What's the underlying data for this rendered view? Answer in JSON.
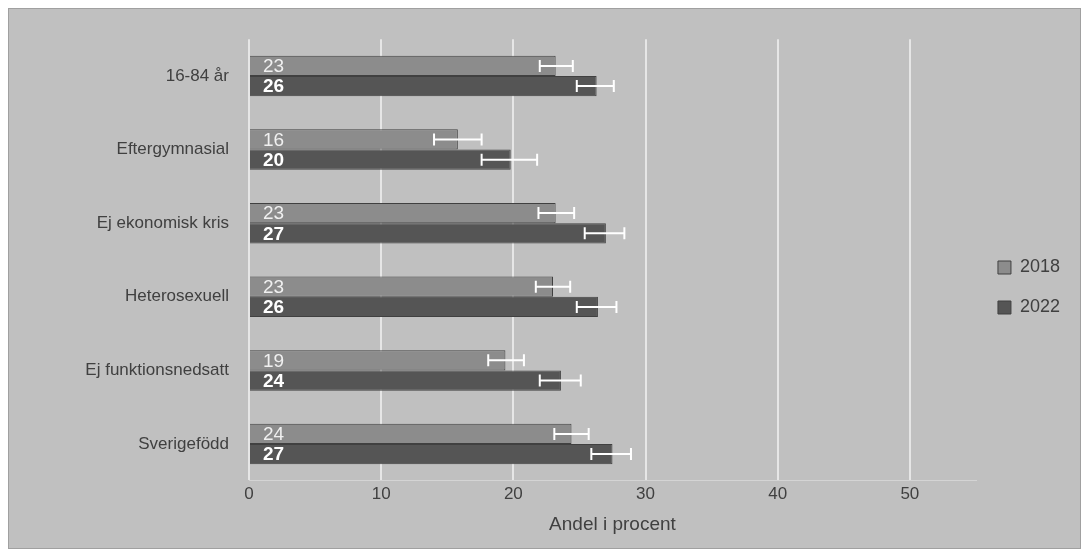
{
  "chart_data": {
    "type": "bar",
    "orientation": "horizontal",
    "xlabel": "Andel i procent",
    "categories": [
      "16-84 år",
      "Eftergymnasial",
      "Ej ekonomisk kris",
      "Heterosexuell",
      "Ej funktionsnedsatt",
      "Sverigefödd"
    ],
    "series": [
      {
        "name": "2018",
        "color": "#8c8c8c",
        "values": [
          23.2,
          15.8,
          23.2,
          23.0,
          19.4,
          24.4
        ],
        "errors": [
          [
            22.0,
            24.5
          ],
          [
            14.0,
            17.6
          ],
          [
            21.9,
            24.6
          ],
          [
            21.7,
            24.3
          ],
          [
            18.1,
            20.8
          ],
          [
            23.1,
            25.7
          ]
        ],
        "value_labels": [
          "23",
          "16",
          "23",
          "23",
          "19",
          "24"
        ]
      },
      {
        "name": "2022",
        "color": "#555555",
        "values": [
          26.3,
          19.8,
          27.0,
          26.4,
          23.6,
          27.5
        ],
        "errors": [
          [
            24.8,
            27.6
          ],
          [
            17.6,
            21.8
          ],
          [
            25.4,
            28.4
          ],
          [
            24.8,
            27.8
          ],
          [
            22.0,
            25.1
          ],
          [
            25.9,
            28.9
          ]
        ],
        "value_labels": [
          "26",
          "20",
          "27",
          "26",
          "24",
          "27"
        ]
      }
    ],
    "xlim": [
      0,
      55
    ],
    "xticks": [
      0,
      10,
      20,
      30,
      40,
      50
    ],
    "grid": "x",
    "legend": "right"
  }
}
